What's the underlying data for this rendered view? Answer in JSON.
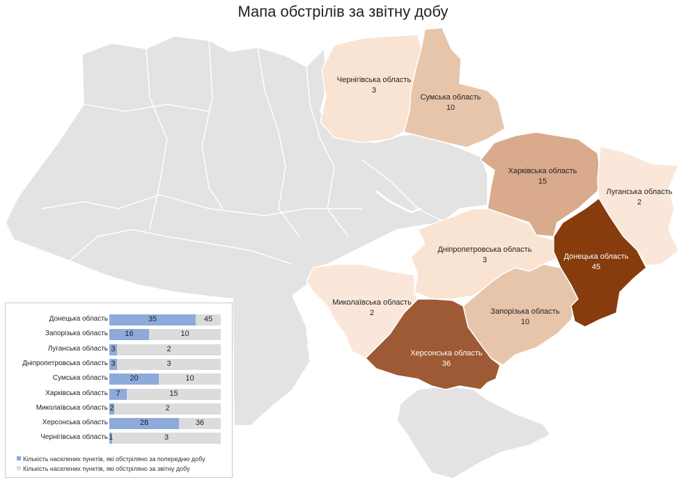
{
  "title": "Мапа обстрілів за звітну добу",
  "colors": {
    "background_region": "#e3e3e3",
    "border": "#ffffff",
    "prev_day": "#8eaadb",
    "current_day": "#dcdcdc"
  },
  "regions": [
    {
      "id": "chernihiv",
      "name": "Чернігівська область",
      "value": "3",
      "color": "#f9e3d3"
    },
    {
      "id": "sumy",
      "name": "Сумська область",
      "value": "10",
      "color": "#e7c5ab"
    },
    {
      "id": "kharkiv",
      "name": "Харківська область",
      "value": "15",
      "color": "#d9aa8b"
    },
    {
      "id": "luhansk",
      "name": "Луганська область",
      "value": "2",
      "color": "#fbe7da"
    },
    {
      "id": "donetsk",
      "name": "Донецька область",
      "value": "45",
      "color": "#863c0c"
    },
    {
      "id": "dnipro",
      "name": "Дніпропетровська область",
      "value": "3",
      "color": "#f9e3d3"
    },
    {
      "id": "zaporizhzhia",
      "name": "Запорізька область",
      "value": "10",
      "color": "#e7c5ab"
    },
    {
      "id": "mykolaiv",
      "name": "Миколаївська область",
      "value": "2",
      "color": "#fbe7da"
    },
    {
      "id": "kherson",
      "name": "Херсонська область",
      "value": "36",
      "color": "#9e5a34"
    }
  ],
  "comparison": {
    "rows": [
      {
        "region": "Донецька область",
        "prev": 35,
        "cur": 45
      },
      {
        "region": "Запорізька область",
        "prev": 16,
        "cur": 10
      },
      {
        "region": "Луганська область",
        "prev": 3,
        "cur": 2
      },
      {
        "region": "Дніпропетровська область",
        "prev": 3,
        "cur": 3
      },
      {
        "region": "Сумська область",
        "prev": 20,
        "cur": 10
      },
      {
        "region": "Харківська область",
        "prev": 7,
        "cur": 15
      },
      {
        "region": "Миколаївська область",
        "prev": 2,
        "cur": 2
      },
      {
        "region": "Херсонська область",
        "prev": 28,
        "cur": 36
      },
      {
        "region": "Чернігівська область",
        "prev": 1,
        "cur": 3
      }
    ],
    "legend_prev": "Кількість населених пунктів, які обстріляно за попередню добу",
    "legend_cur": "Кількість населених пунктів, які обстріляно за звітну добу"
  }
}
